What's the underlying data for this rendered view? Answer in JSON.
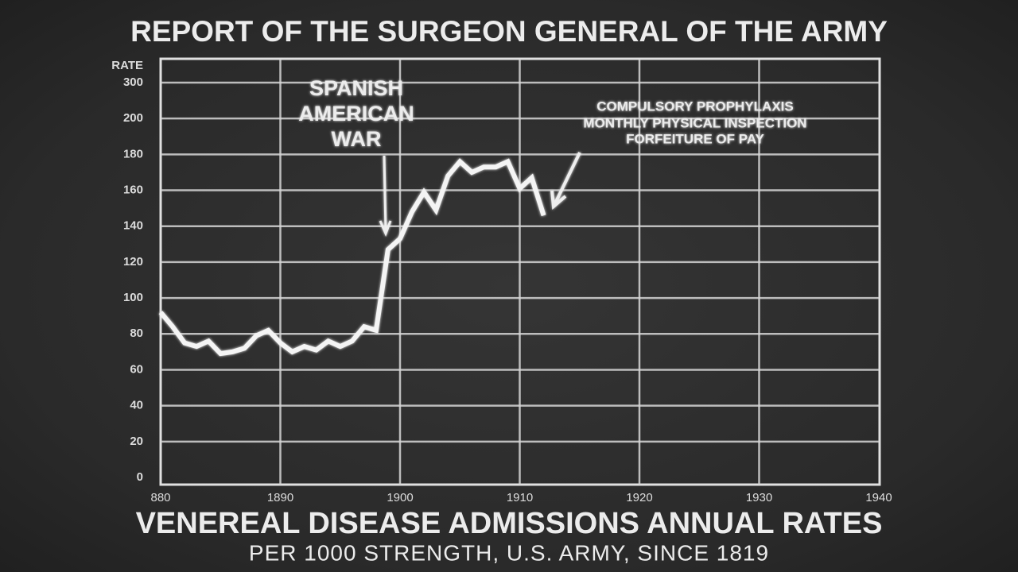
{
  "chart_data": {
    "type": "line",
    "title": "REPORT OF THE SURGEON GENERAL OF THE ARMY",
    "subtitle": "VENEREAL DISEASE ADMISSIONS ANNUAL RATES",
    "caption": "PER 1000 STRENGTH, U.S. ARMY, SINCE 1819",
    "y_label": "RATE",
    "x": [
      1880,
      1881,
      1882,
      1883,
      1884,
      1885,
      1886,
      1887,
      1888,
      1889,
      1890,
      1891,
      1892,
      1893,
      1894,
      1895,
      1896,
      1897,
      1898,
      1899,
      1900,
      1901,
      1902,
      1903,
      1904,
      1905,
      1906,
      1907,
      1908,
      1909,
      1910,
      1911,
      1912
    ],
    "values": [
      92,
      84,
      75,
      73,
      76,
      69,
      70,
      72,
      79,
      82,
      75,
      70,
      73,
      71,
      76,
      73,
      76,
      84,
      82,
      127,
      133,
      148,
      159,
      149,
      168,
      176,
      170,
      173,
      173,
      176,
      161,
      167,
      146
    ],
    "color": "#f4f4f4",
    "xlim": [
      1880,
      1940
    ],
    "xticks": [
      {
        "value": 1880,
        "label": "880"
      },
      1890,
      1900,
      1910,
      1920,
      1930,
      1940
    ],
    "ylim": [
      0,
      300
    ],
    "yticks": [
      0,
      20,
      40,
      60,
      80,
      100,
      120,
      140,
      160,
      180,
      200,
      300
    ],
    "grid": true,
    "annotations": [
      {
        "lines": [
          "SPANISH",
          "AMERICAN",
          "WAR"
        ]
      },
      {
        "lines": [
          "COMPULSORY PROPHYLAXIS",
          "MONTHLY PHYSICAL INSPECTION",
          "FORFEITURE OF PAY"
        ]
      }
    ]
  }
}
